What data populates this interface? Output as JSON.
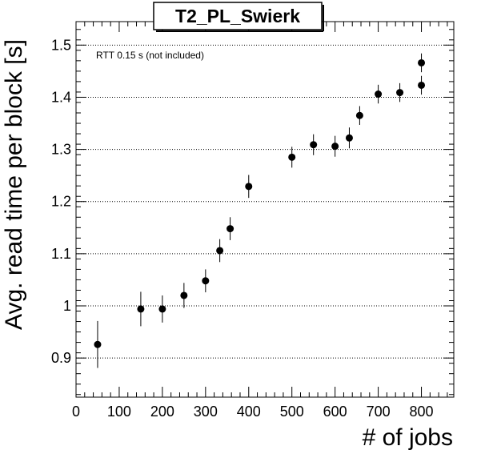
{
  "chart_data": {
    "type": "scatter",
    "title": "T2_PL_Swierk",
    "xlabel": "# of jobs",
    "ylabel": "Avg. read time per block [s]",
    "annotation": "RTT 0.15 s (not included)",
    "xlim": [
      0,
      875
    ],
    "ylim": [
      0.825,
      1.545
    ],
    "xticks": [
      0,
      100,
      200,
      300,
      400,
      500,
      600,
      700,
      800
    ],
    "yticks": [
      0.9,
      1,
      1.1,
      1.2,
      1.3,
      1.4,
      1.5
    ],
    "ytick_labels": [
      "0.9",
      "1",
      "1.1",
      "1.2",
      "1.3",
      "1.4",
      "1.5"
    ],
    "grid": "y-dotted",
    "points": [
      {
        "x": 50,
        "y": 0.926,
        "err": 0.045
      },
      {
        "x": 150,
        "y": 0.994,
        "err": 0.033
      },
      {
        "x": 200,
        "y": 0.994,
        "err": 0.026
      },
      {
        "x": 250,
        "y": 1.02,
        "err": 0.024
      },
      {
        "x": 300,
        "y": 1.048,
        "err": 0.022
      },
      {
        "x": 333,
        "y": 1.106,
        "err": 0.022
      },
      {
        "x": 357,
        "y": 1.148,
        "err": 0.022
      },
      {
        "x": 400,
        "y": 1.229,
        "err": 0.022
      },
      {
        "x": 500,
        "y": 1.285,
        "err": 0.02
      },
      {
        "x": 550,
        "y": 1.309,
        "err": 0.02
      },
      {
        "x": 600,
        "y": 1.306,
        "err": 0.02
      },
      {
        "x": 633,
        "y": 1.322,
        "err": 0.02
      },
      {
        "x": 657,
        "y": 1.365,
        "err": 0.018
      },
      {
        "x": 700,
        "y": 1.406,
        "err": 0.018
      },
      {
        "x": 750,
        "y": 1.409,
        "err": 0.018
      },
      {
        "x": 800,
        "y": 1.423,
        "err": 0.018
      },
      {
        "x": 800,
        "y": 1.466,
        "err": 0.018
      }
    ]
  }
}
